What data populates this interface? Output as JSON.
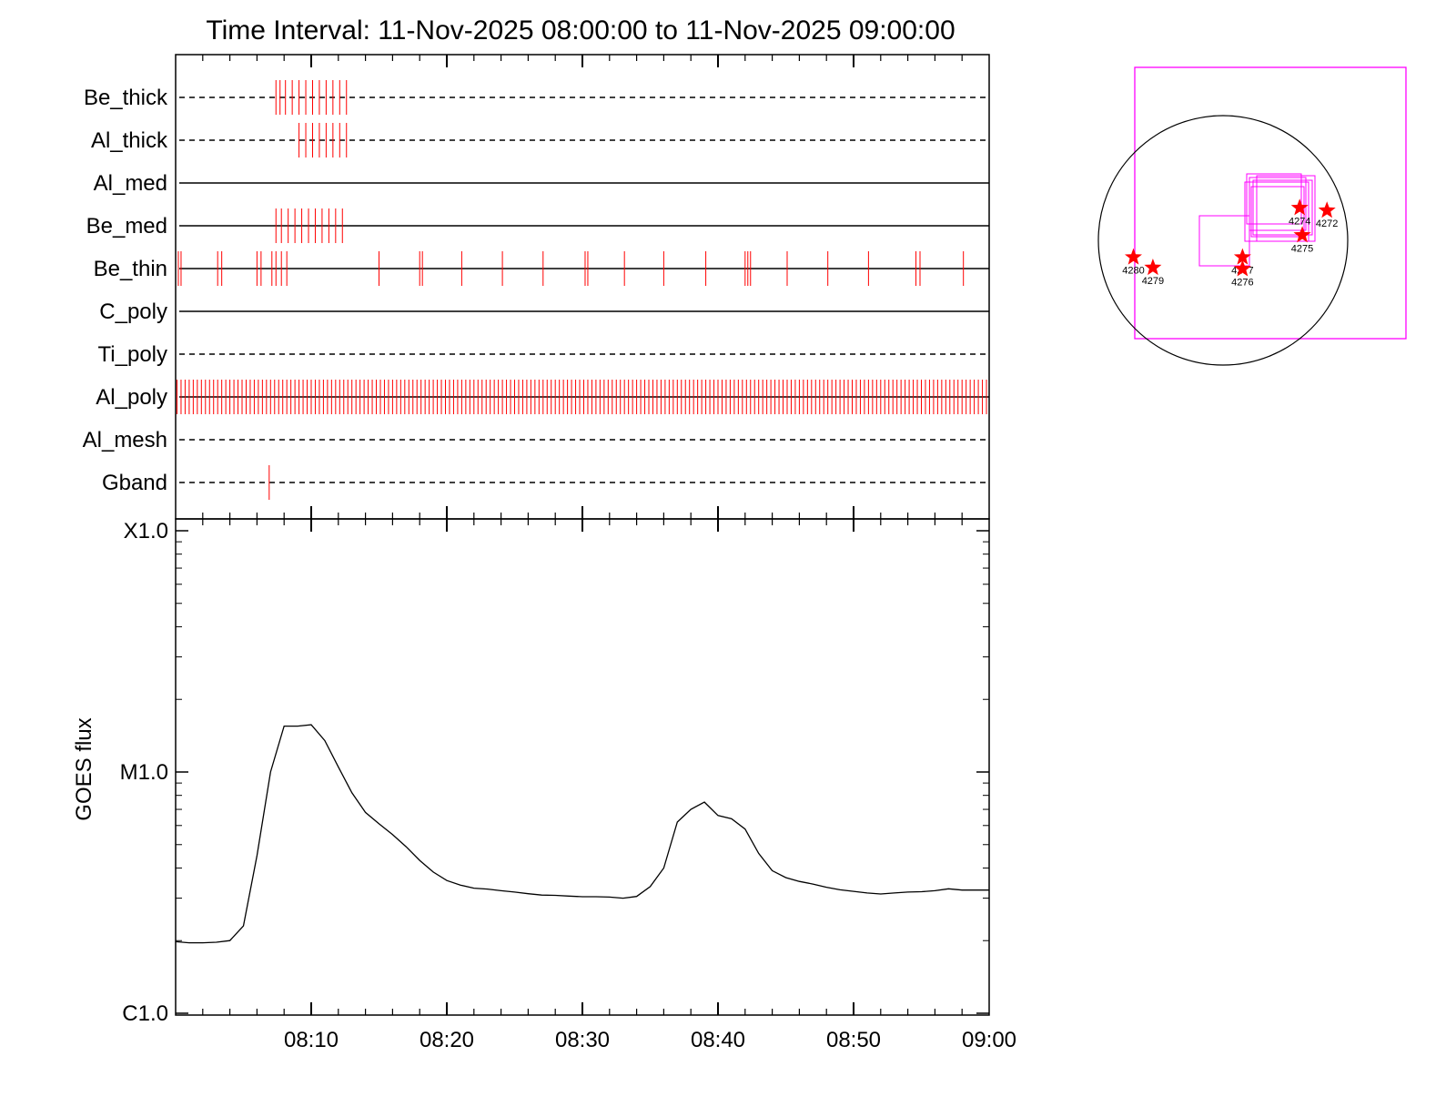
{
  "chart_data": {
    "title": "Time Interval: 11-Nov-2025 08:00:00 to 11-Nov-2025 09:00:00",
    "filter_panel": {
      "type": "event-timeline",
      "x_range_minutes": [
        0,
        60
      ],
      "filters": [
        {
          "name": "Be_thick",
          "line": "dashed",
          "events": [
            7.4,
            7.7,
            8.1,
            8.6,
            9.1,
            9.6,
            10.1,
            10.6,
            11.1,
            11.6,
            12.1,
            12.6
          ]
        },
        {
          "name": "Al_thick",
          "line": "dashed",
          "events": [
            9.1,
            9.6,
            10.1,
            10.6,
            11.1,
            11.6,
            12.1,
            12.6
          ]
        },
        {
          "name": "Al_med",
          "line": "solid",
          "events": []
        },
        {
          "name": "Be_med",
          "line": "solid",
          "events": [
            7.4,
            7.8,
            8.3,
            8.8,
            9.3,
            9.8,
            10.3,
            10.8,
            11.3,
            11.8,
            12.3
          ]
        },
        {
          "name": "Be_thin",
          "line": "solid",
          "events": [
            0.2,
            0.4,
            3.1,
            3.4,
            6.0,
            6.3,
            7.1,
            7.4,
            7.8,
            8.2,
            15.0,
            18.0,
            18.2,
            21.1,
            24.1,
            27.1,
            30.2,
            30.4,
            33.1,
            36.0,
            39.1,
            42.0,
            42.2,
            42.4,
            45.1,
            48.1,
            51.1,
            54.6,
            54.9,
            58.1
          ]
        },
        {
          "name": "C_poly",
          "line": "solid",
          "events": []
        },
        {
          "name": "Ti_poly",
          "line": "dashed",
          "events": []
        },
        {
          "name": "Al_poly",
          "line": "solid",
          "event_step": 0.3,
          "events": []
        },
        {
          "name": "Al_mesh",
          "line": "dashed",
          "events": []
        },
        {
          "name": "Gband",
          "line": "dashed",
          "events": [
            6.9
          ]
        }
      ]
    },
    "goes_panel": {
      "type": "line",
      "ylabel": "GOES flux",
      "y_scale": "log",
      "ylim": [
        1e-06,
        0.0001
      ],
      "yticks": [
        {
          "label": "X1.0",
          "value": 0.0001
        },
        {
          "label": "M1.0",
          "value": 1e-05
        },
        {
          "label": "C1.0",
          "value": 1e-06
        }
      ],
      "xticks": [
        {
          "label": "08:10",
          "minute": 10
        },
        {
          "label": "08:20",
          "minute": 20
        },
        {
          "label": "08:30",
          "minute": 30
        },
        {
          "label": "08:40",
          "minute": 40
        },
        {
          "label": "08:50",
          "minute": 50
        },
        {
          "label": "09:00",
          "minute": 60
        }
      ],
      "series": [
        {
          "x": [
            0,
            1,
            2,
            3,
            4,
            5,
            6,
            7,
            8,
            9,
            10,
            11,
            12,
            13,
            14,
            15,
            16,
            17,
            18,
            19,
            20,
            21,
            22,
            23,
            24,
            25,
            26,
            27,
            28,
            29,
            30,
            31,
            32,
            33,
            34,
            35,
            36,
            37,
            38,
            39,
            40,
            41,
            42,
            43,
            44,
            45,
            46,
            47,
            48,
            49,
            50,
            51,
            52,
            53,
            54,
            55,
            56,
            57,
            58,
            59,
            60
          ],
          "y": [
            1.98e-06,
            1.96e-06,
            1.96e-06,
            1.97e-06,
            2e-06,
            2.3e-06,
            4.5e-06,
            1e-05,
            1.55e-05,
            1.55e-05,
            1.57e-05,
            1.35e-05,
            1.05e-05,
            8.2e-06,
            6.8e-06,
            6.1e-06,
            5.5e-06,
            4.9e-06,
            4.3e-06,
            3.85e-06,
            3.55e-06,
            3.4e-06,
            3.3e-06,
            3.27e-06,
            3.22e-06,
            3.18e-06,
            3.13e-06,
            3.09e-06,
            3.08e-06,
            3.06e-06,
            3.04e-06,
            3.04e-06,
            3.03e-06,
            3e-06,
            3.05e-06,
            3.35e-06,
            4e-06,
            6.2e-06,
            7e-06,
            7.5e-06,
            6.6e-06,
            6.4e-06,
            5.8e-06,
            4.6e-06,
            3.9e-06,
            3.65e-06,
            3.52e-06,
            3.43e-06,
            3.33e-06,
            3.25e-06,
            3.2e-06,
            3.15e-06,
            3.12e-06,
            3.15e-06,
            3.18e-06,
            3.19e-06,
            3.22e-06,
            3.28e-06,
            3.24e-06,
            3.24e-06,
            3.24e-06
          ]
        }
      ]
    },
    "sun_map": {
      "type": "scatter",
      "points": [
        {
          "label": "4274",
          "x": 590,
          "y": 250
        },
        {
          "label": "4272",
          "x": 800,
          "y": 230
        },
        {
          "label": "4275",
          "x": 610,
          "y": 40
        },
        {
          "label": "4277",
          "x": 150,
          "y": -130
        },
        {
          "label": "4276",
          "x": 150,
          "y": -220
        },
        {
          "label": "4280",
          "x": -690,
          "y": -130
        },
        {
          "label": "4279",
          "x": -540,
          "y": -210
        }
      ]
    }
  },
  "colors": {
    "events": "#ff0000",
    "fov": "#ff00ff",
    "axes": "#000000",
    "markers": "#ff0000"
  }
}
